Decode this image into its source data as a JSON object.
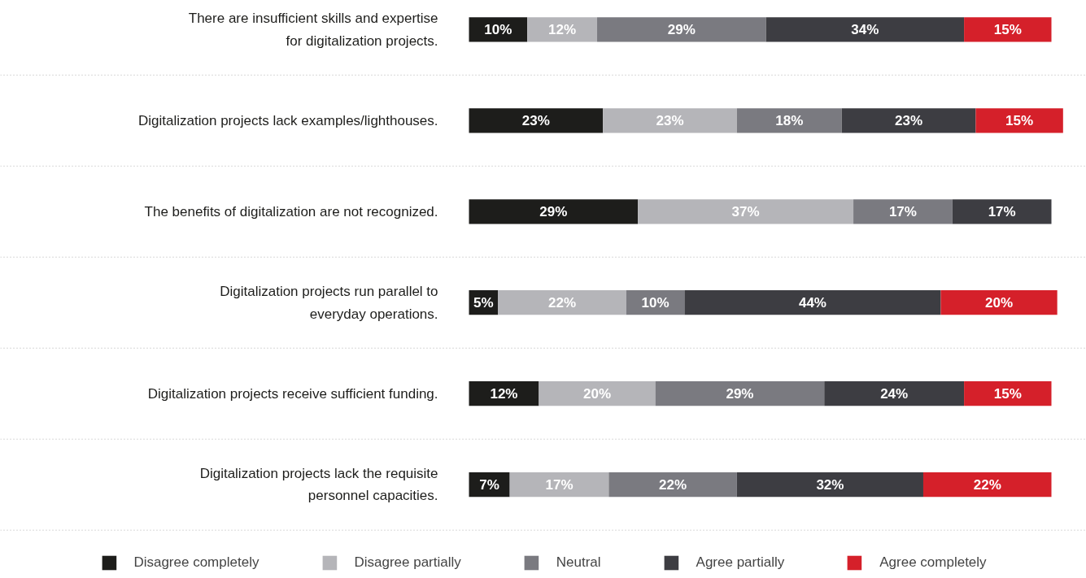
{
  "chart_data": {
    "type": "bar",
    "orientation": "horizontal",
    "stacked": true,
    "grid": "y",
    "legend": "bottom",
    "tick_labels": false,
    "categories": [
      "There are insufficient skills and expertise\nfor digitalization projects.",
      "Digitalization projects lack examples/lighthouses.",
      "The benefits of digitalization are not recognized.",
      "Digitalization projects run parallel to\neveryday operations.",
      "Digitalization projects receive sufficient funding.",
      "Digitalization projects lack the requisite\npersonnel capacities."
    ],
    "series": [
      {
        "name": "Disagree completely",
        "color": "#1d1d1b",
        "values": [
          10,
          23,
          29,
          5,
          12,
          7
        ],
        "value_labels": [
          "10%",
          "23%",
          "29%",
          "5%",
          "12%",
          "7%"
        ]
      },
      {
        "name": "Disagree partially",
        "color": "#b5b5b9",
        "values": [
          12,
          23,
          37,
          22,
          20,
          17
        ],
        "value_labels": [
          "12%",
          "23%",
          "37%",
          "22%",
          "20%",
          "17%"
        ]
      },
      {
        "name": "Neutral",
        "color": "#7a7a80",
        "values": [
          29,
          18,
          17,
          10,
          29,
          22
        ],
        "value_labels": [
          "29%",
          "18%",
          "17%",
          "10%",
          "29%",
          "22%"
        ]
      },
      {
        "name": "Agree partially",
        "color": "#3d3d42",
        "values": [
          34,
          23,
          17,
          44,
          24,
          32
        ],
        "value_labels": [
          "34%",
          "23%",
          "17%",
          "44%",
          "24%",
          "32%"
        ]
      },
      {
        "name": "Agree completely",
        "color": "#d5202a",
        "values": [
          15,
          15,
          null,
          20,
          15,
          22
        ],
        "value_labels": [
          "15%",
          "15%",
          null,
          "20%",
          "15%",
          "22%"
        ]
      }
    ]
  }
}
